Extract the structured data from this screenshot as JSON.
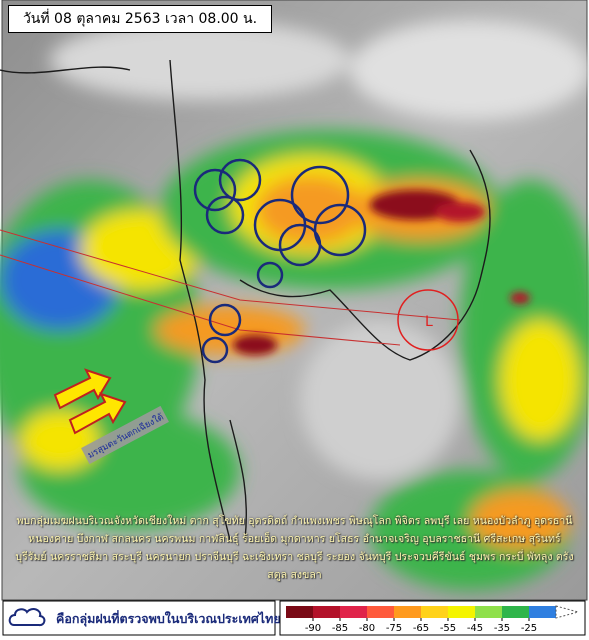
{
  "header": {
    "title": "วันที่ 08 ตุลาคม 2563 เวลา 08.00 น."
  },
  "map": {
    "monsoon_label": "มรสุมตะวันตกเฉียงใต้",
    "low_pressure_label": "L"
  },
  "summary": "พบกลุ่มเมฆฝนบริเวณจังหวัดเชียงใหม่ ตาก สุโขทัย อุตรดิตถ์ กำแพงเพชร พิษณุโลก พิจิตร ลพบุรี เลย หนองบัวลำภู อุดรธานี หนองคาย บึงกาฬ สกลนคร นครพนม กาฬสินธุ์ ร้อยเอ็ด มุกดาหาร ยโสธร อำนาจเจริญ อุบลราชธานี ศรีสะเกษ สุรินทร์ บุรีรัมย์ นครราชสีมา สระบุรี นครนายก ปราจีนบุรี ฉะเชิงเทรา ชลบุรี ระยอง จันทบุรี ประจวบคีรีขันธ์ ชุมพร กระบี่ พัทลุง ตรัง สตูล สงขลา",
  "legend": {
    "label": "คือกลุ่มฝนที่ตรวจพบในบริเวณประเทศไทย"
  },
  "colorbar": {
    "ticks": [
      -90,
      -85,
      -80,
      -75,
      -65,
      -55,
      -45,
      -35,
      -25
    ],
    "colors": [
      "#7a0a16",
      "#b3122a",
      "#e0244a",
      "#ff5a3c",
      "#ff9a1e",
      "#ffd21a",
      "#f4f400",
      "#8fe04a",
      "#2fb54a",
      "#2f7fe0"
    ]
  }
}
